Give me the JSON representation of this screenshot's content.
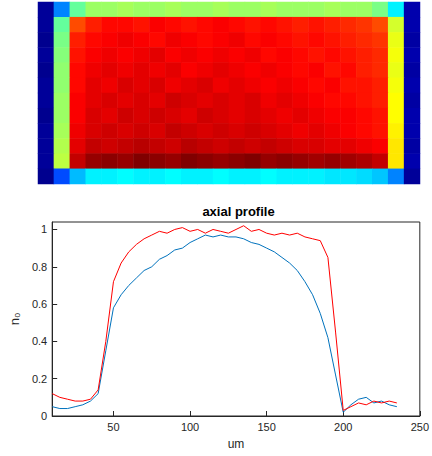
{
  "chart_data": [
    {
      "type": "heatmap",
      "tick_labels": false,
      "values": [
        [
          0.08,
          0.3,
          0.5,
          0.55,
          0.55,
          0.56,
          0.55,
          0.55,
          0.56,
          0.55,
          0.55,
          0.56,
          0.55,
          0.55,
          0.56,
          0.55,
          0.55,
          0.55,
          0.56,
          0.55,
          0.55,
          0.52,
          0.4,
          0.1
        ],
        [
          0.08,
          0.5,
          0.8,
          0.84,
          0.86,
          0.86,
          0.85,
          0.87,
          0.86,
          0.85,
          0.86,
          0.87,
          0.86,
          0.85,
          0.86,
          0.85,
          0.84,
          0.85,
          0.84,
          0.83,
          0.82,
          0.8,
          0.6,
          0.1
        ],
        [
          0.07,
          0.52,
          0.84,
          0.86,
          0.87,
          0.88,
          0.87,
          0.86,
          0.88,
          0.87,
          0.86,
          0.87,
          0.88,
          0.86,
          0.87,
          0.86,
          0.85,
          0.86,
          0.85,
          0.84,
          0.83,
          0.82,
          0.62,
          0.09
        ],
        [
          0.08,
          0.53,
          0.85,
          0.87,
          0.88,
          0.87,
          0.88,
          0.89,
          0.87,
          0.88,
          0.87,
          0.88,
          0.87,
          0.88,
          0.86,
          0.87,
          0.86,
          0.85,
          0.86,
          0.85,
          0.84,
          0.83,
          0.63,
          0.1
        ],
        [
          0.07,
          0.54,
          0.86,
          0.88,
          0.89,
          0.88,
          0.89,
          0.88,
          0.89,
          0.87,
          0.88,
          0.89,
          0.88,
          0.87,
          0.88,
          0.87,
          0.86,
          0.87,
          0.85,
          0.86,
          0.84,
          0.83,
          0.62,
          0.09
        ],
        [
          0.08,
          0.54,
          0.86,
          0.89,
          0.88,
          0.9,
          0.89,
          0.9,
          0.88,
          0.89,
          0.9,
          0.88,
          0.89,
          0.88,
          0.87,
          0.88,
          0.87,
          0.86,
          0.87,
          0.85,
          0.85,
          0.84,
          0.63,
          0.1
        ],
        [
          0.08,
          0.55,
          0.87,
          0.89,
          0.9,
          0.89,
          0.9,
          0.89,
          0.91,
          0.9,
          0.89,
          0.9,
          0.89,
          0.9,
          0.88,
          0.89,
          0.88,
          0.87,
          0.86,
          0.86,
          0.85,
          0.84,
          0.64,
          0.09
        ],
        [
          0.07,
          0.55,
          0.87,
          0.9,
          0.89,
          0.91,
          0.9,
          0.91,
          0.9,
          0.89,
          0.91,
          0.9,
          0.89,
          0.9,
          0.89,
          0.88,
          0.89,
          0.88,
          0.87,
          0.87,
          0.86,
          0.85,
          0.64,
          0.1
        ],
        [
          0.08,
          0.56,
          0.88,
          0.9,
          0.91,
          0.9,
          0.91,
          0.9,
          0.92,
          0.91,
          0.9,
          0.91,
          0.9,
          0.91,
          0.9,
          0.89,
          0.88,
          0.89,
          0.88,
          0.87,
          0.86,
          0.85,
          0.65,
          0.1
        ],
        [
          0.08,
          0.57,
          0.89,
          0.92,
          0.91,
          0.92,
          0.93,
          0.92,
          0.91,
          0.93,
          0.92,
          0.91,
          0.92,
          0.91,
          0.92,
          0.91,
          0.9,
          0.9,
          0.89,
          0.89,
          0.88,
          0.87,
          0.66,
          0.09
        ],
        [
          0.08,
          0.58,
          0.92,
          0.96,
          0.97,
          0.96,
          0.98,
          0.97,
          0.96,
          0.98,
          0.97,
          0.96,
          0.97,
          0.98,
          0.96,
          0.97,
          0.96,
          0.95,
          0.96,
          0.95,
          0.94,
          0.92,
          0.66,
          0.1
        ],
        [
          0.07,
          0.25,
          0.35,
          0.4,
          0.4,
          0.41,
          0.4,
          0.4,
          0.41,
          0.4,
          0.4,
          0.41,
          0.4,
          0.4,
          0.41,
          0.4,
          0.4,
          0.4,
          0.39,
          0.39,
          0.38,
          0.36,
          0.3,
          0.08
        ]
      ]
    },
    {
      "type": "line",
      "title": "axial profile",
      "xlabel": "um",
      "ylabel": "n₀",
      "x": [
        10,
        15,
        20,
        25,
        30,
        35,
        40,
        45,
        50,
        55,
        60,
        65,
        70,
        75,
        80,
        85,
        90,
        95,
        100,
        105,
        110,
        115,
        120,
        125,
        130,
        135,
        140,
        145,
        150,
        155,
        160,
        165,
        170,
        175,
        180,
        185,
        190,
        195,
        200,
        205,
        210,
        215,
        220,
        225,
        230,
        235
      ],
      "series": [
        {
          "color": "#0072bd",
          "values": [
            0.05,
            0.04,
            0.04,
            0.05,
            0.06,
            0.08,
            0.12,
            0.35,
            0.58,
            0.65,
            0.7,
            0.74,
            0.78,
            0.8,
            0.84,
            0.86,
            0.89,
            0.9,
            0.93,
            0.95,
            0.97,
            0.96,
            0.97,
            0.96,
            0.96,
            0.95,
            0.93,
            0.92,
            0.9,
            0.88,
            0.85,
            0.82,
            0.78,
            0.72,
            0.65,
            0.55,
            0.42,
            0.22,
            0.02,
            0.06,
            0.09,
            0.1,
            0.07,
            0.08,
            0.06,
            0.05
          ]
        },
        {
          "color": "#ff0000",
          "values": [
            0.12,
            0.1,
            0.09,
            0.08,
            0.08,
            0.09,
            0.14,
            0.4,
            0.72,
            0.82,
            0.88,
            0.92,
            0.95,
            0.97,
            0.99,
            0.98,
            1.0,
            1.01,
            0.99,
            1.0,
            0.98,
            1.0,
            0.99,
            0.98,
            1.0,
            1.02,
            0.99,
            1.0,
            0.98,
            0.97,
            0.98,
            0.97,
            0.98,
            0.96,
            0.95,
            0.94,
            0.85,
            0.45,
            0.03,
            0.05,
            0.07,
            0.06,
            0.08,
            0.07,
            0.08,
            0.07
          ]
        }
      ],
      "xlim": [
        10,
        250
      ],
      "xticks": [
        50,
        100,
        150,
        200,
        250
      ],
      "ylim": [
        0,
        1.04
      ],
      "yticks": [
        0,
        0.2,
        0.4,
        0.6,
        0.8,
        1
      ],
      "grid": false
    }
  ]
}
